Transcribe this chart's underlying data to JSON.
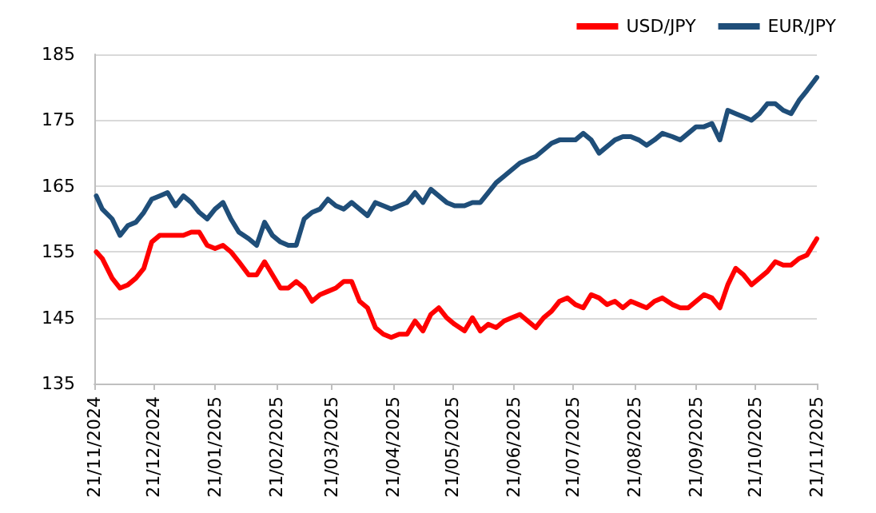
{
  "chart_data": {
    "type": "line",
    "legend": "top right",
    "grid": "y",
    "line_style": "solid",
    "marker": "none",
    "x": [
      "2024-11-22",
      "2024-11-25",
      "2024-11-30",
      "2024-12-04",
      "2024-12-08",
      "2024-12-12",
      "2024-12-16",
      "2024-12-20",
      "2024-12-24",
      "2024-12-28",
      "2025-01-01",
      "2025-01-05",
      "2025-01-09",
      "2025-01-13",
      "2025-01-17",
      "2025-01-21",
      "2025-01-25",
      "2025-01-29",
      "2025-02-02",
      "2025-02-07",
      "2025-02-11",
      "2025-02-15",
      "2025-02-19",
      "2025-02-23",
      "2025-02-27",
      "2025-03-03",
      "2025-03-07",
      "2025-03-11",
      "2025-03-15",
      "2025-03-19",
      "2025-03-23",
      "2025-03-27",
      "2025-03-31",
      "2025-04-04",
      "2025-04-08",
      "2025-04-12",
      "2025-04-16",
      "2025-04-20",
      "2025-04-24",
      "2025-04-28",
      "2025-05-02",
      "2025-05-06",
      "2025-05-10",
      "2025-05-14",
      "2025-05-18",
      "2025-05-22",
      "2025-05-27",
      "2025-05-31",
      "2025-06-04",
      "2025-06-08",
      "2025-06-12",
      "2025-06-16",
      "2025-06-20",
      "2025-06-24",
      "2025-06-28",
      "2025-07-02",
      "2025-07-06",
      "2025-07-10",
      "2025-07-14",
      "2025-07-18",
      "2025-07-22",
      "2025-07-26",
      "2025-07-30",
      "2025-08-03",
      "2025-08-07",
      "2025-08-11",
      "2025-08-15",
      "2025-08-19",
      "2025-08-23",
      "2025-08-27",
      "2025-08-31",
      "2025-09-04",
      "2025-09-09",
      "2025-09-13",
      "2025-09-17",
      "2025-09-21",
      "2025-09-25",
      "2025-09-29",
      "2025-10-03",
      "2025-10-07",
      "2025-10-11",
      "2025-10-15",
      "2025-10-19",
      "2025-10-23",
      "2025-10-27",
      "2025-10-31",
      "2025-11-04",
      "2025-11-08",
      "2025-11-12",
      "2025-11-16",
      "2025-11-21"
    ],
    "xlim": [
      "2024-11-21",
      "2025-11-21"
    ],
    "xticks": [
      {
        "value": "2024-11-21",
        "label": "21/11/2024"
      },
      {
        "value": "2024-12-21",
        "label": "21/12/2024"
      },
      {
        "value": "2025-01-21",
        "label": "21/01/2025"
      },
      {
        "value": "2025-02-21",
        "label": "21/02/2025"
      },
      {
        "value": "2025-03-21",
        "label": "21/03/2025"
      },
      {
        "value": "2025-04-21",
        "label": "21/04/2025"
      },
      {
        "value": "2025-05-21",
        "label": "21/05/2025"
      },
      {
        "value": "2025-06-21",
        "label": "21/06/2025"
      },
      {
        "value": "2025-07-21",
        "label": "21/07/2025"
      },
      {
        "value": "2025-08-21",
        "label": "21/08/2025"
      },
      {
        "value": "2025-09-21",
        "label": "21/09/2025"
      },
      {
        "value": "2025-10-21",
        "label": "21/10/2025"
      },
      {
        "value": "2025-11-21",
        "label": "21/11/2025"
      }
    ],
    "ylim": [
      135,
      185
    ],
    "yticks": [
      135,
      145,
      155,
      165,
      175,
      185
    ],
    "series": [
      {
        "name": "USD/JPY",
        "color": "#ff0000",
        "values": [
          155,
          154,
          151,
          149.5,
          150,
          151,
          152.5,
          156.5,
          157.5,
          157.5,
          157.5,
          157.5,
          158,
          158,
          156,
          155.5,
          156,
          155,
          153.5,
          151.5,
          151.5,
          153.5,
          151.5,
          149.5,
          149.5,
          150.5,
          149.5,
          147.5,
          148.5,
          149,
          149.5,
          150.5,
          150.5,
          147.5,
          146.5,
          143.5,
          142.5,
          142,
          142.5,
          142.5,
          144.5,
          143,
          145.5,
          146.5,
          145,
          144,
          143,
          145,
          143,
          144,
          143.5,
          144.5,
          145,
          145.5,
          144.5,
          143.5,
          145,
          146,
          147.5,
          148,
          147,
          146.5,
          148.5,
          148,
          147,
          147.5,
          146.5,
          147.5,
          147,
          146.5,
          147.5,
          148,
          147,
          146.5,
          146.5,
          147.5,
          148.5,
          148,
          146.5,
          150,
          152.5,
          151.5,
          150,
          151,
          152,
          153.5,
          153,
          153,
          154,
          154.5,
          157
        ]
      },
      {
        "name": "EUR/JPY",
        "color": "#1f4e79",
        "values": [
          163.5,
          161.5,
          160,
          157.5,
          159,
          159.5,
          161,
          163,
          163.5,
          164,
          162,
          163.5,
          162.5,
          161,
          160,
          161.5,
          162.5,
          160,
          158,
          157,
          156,
          159.5,
          157.5,
          156.5,
          156,
          156,
          160,
          161,
          161.5,
          163,
          162,
          161.5,
          162.5,
          161.5,
          160.5,
          162.5,
          162,
          161.5,
          162,
          162.5,
          164,
          162.5,
          164.5,
          163.5,
          162.5,
          162,
          162,
          162.5,
          162.5,
          164,
          165.5,
          166.5,
          167.5,
          168.5,
          169,
          169.5,
          170.5,
          171.5,
          172,
          172,
          172,
          173,
          172,
          170,
          171,
          172,
          172.5,
          172.5,
          172,
          171.2,
          172,
          173,
          172.5,
          172,
          173,
          174,
          174,
          174.5,
          172,
          176.5,
          176,
          175.5,
          175,
          176,
          177.5,
          177.5,
          176.5,
          176,
          178,
          179.5,
          181.5
        ]
      }
    ]
  }
}
